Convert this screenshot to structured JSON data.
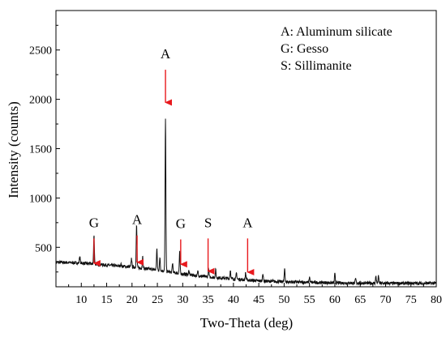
{
  "chart_data": {
    "type": "line",
    "xlabel": "Two-Theta (deg)",
    "ylabel": "Intensity (counts)",
    "xlim": [
      5,
      80
    ],
    "ylim": [
      100,
      2900
    ],
    "x_ticks": [
      10,
      15,
      20,
      25,
      30,
      35,
      40,
      45,
      50,
      55,
      60,
      65,
      70,
      75,
      80
    ],
    "y_ticks": [
      500,
      1000,
      1500,
      2000,
      2500
    ],
    "legend": {
      "placement": "top-right",
      "entries": [
        "A: Aluminum silicate",
        "G: Gesso",
        "S: Sillimanite"
      ]
    },
    "annotations": [
      {
        "label": "G",
        "x": 12.5,
        "y_tip": 330,
        "y_top": 590
      },
      {
        "label": "A",
        "x": 21.0,
        "y_tip": 340,
        "y_top": 620
      },
      {
        "label": "A",
        "x": 26.6,
        "y_tip": 1960,
        "y_top": 2300
      },
      {
        "label": "G",
        "x": 29.6,
        "y_tip": 320,
        "y_top": 580
      },
      {
        "label": "S",
        "x": 35.0,
        "y_tip": 250,
        "y_top": 590
      },
      {
        "label": "A",
        "x": 42.8,
        "y_tip": 240,
        "y_top": 590
      }
    ],
    "arrow_color": "#e8191d",
    "series": [
      {
        "baseline": [
          [
            5,
            350
          ],
          [
            10,
            340
          ],
          [
            15,
            320
          ],
          [
            20,
            300
          ],
          [
            25,
            270
          ],
          [
            30,
            230
          ],
          [
            35,
            200
          ],
          [
            40,
            180
          ],
          [
            45,
            160
          ],
          [
            50,
            150
          ],
          [
            60,
            140
          ],
          [
            70,
            135
          ],
          [
            80,
            135
          ]
        ],
        "peaks": [
          [
            9.7,
            410
          ],
          [
            12.5,
            620
          ],
          [
            17.8,
            330
          ],
          [
            19.9,
            390
          ],
          [
            20.9,
            720
          ],
          [
            22.1,
            400
          ],
          [
            24.9,
            480
          ],
          [
            25.5,
            400
          ],
          [
            26.6,
            1800
          ],
          [
            28.0,
            340
          ],
          [
            29.4,
            450
          ],
          [
            31.2,
            260
          ],
          [
            33.0,
            260
          ],
          [
            35.1,
            280
          ],
          [
            36.5,
            270
          ],
          [
            39.4,
            270
          ],
          [
            40.6,
            240
          ],
          [
            42.4,
            240
          ],
          [
            45.8,
            240
          ],
          [
            50.1,
            290
          ],
          [
            55.0,
            200
          ],
          [
            60.0,
            230
          ],
          [
            64.1,
            180
          ],
          [
            68.1,
            210
          ],
          [
            68.6,
            205
          ]
        ]
      }
    ]
  }
}
